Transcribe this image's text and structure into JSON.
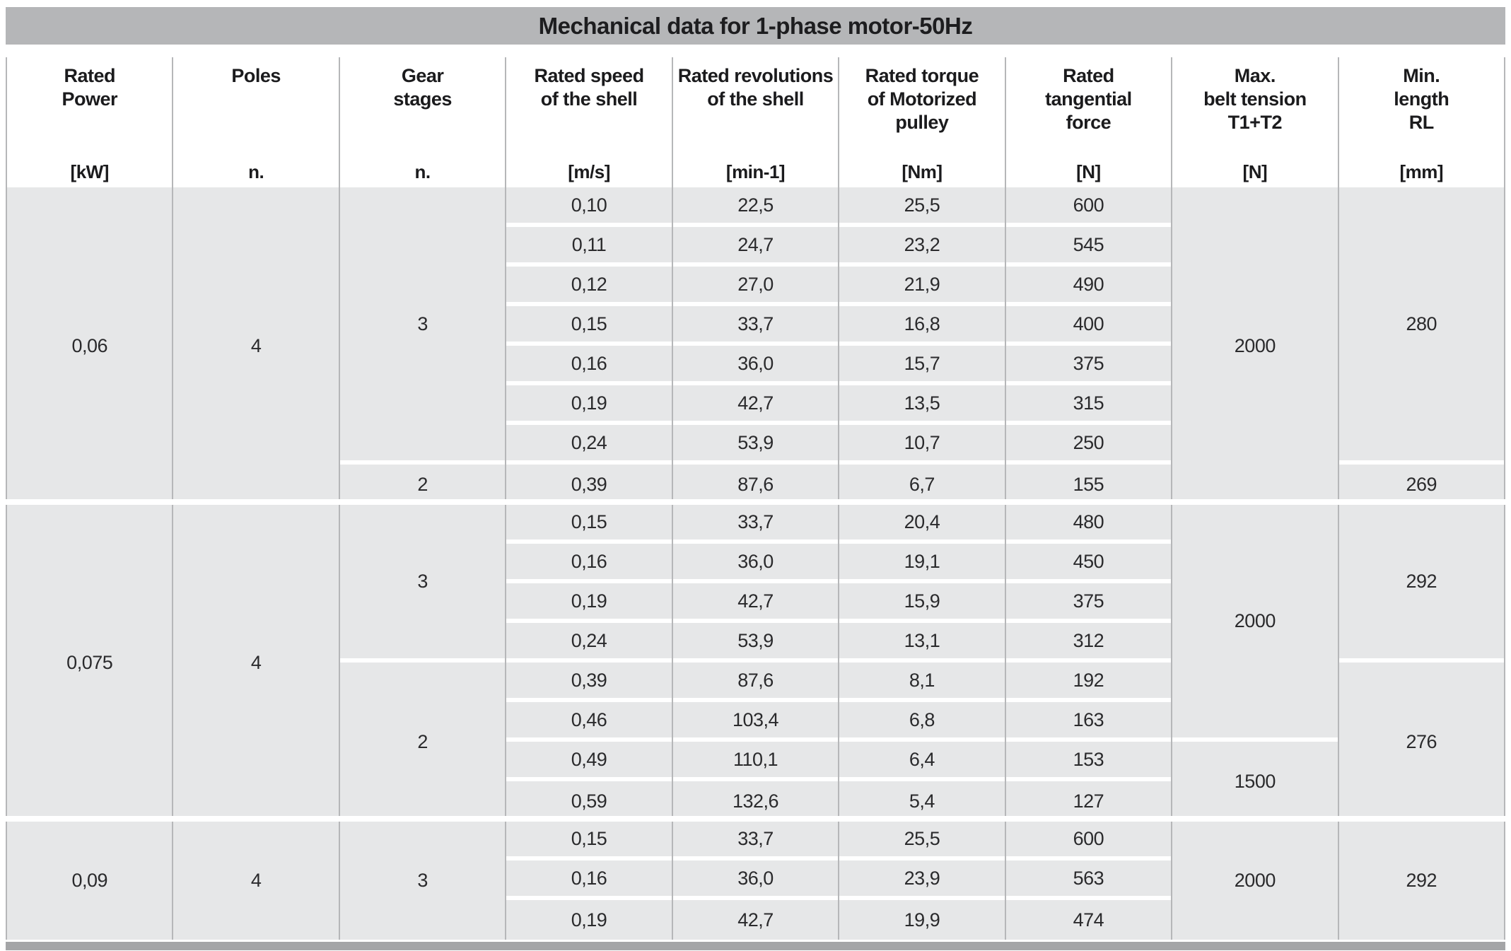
{
  "title": "Mechanical data for 1-phase motor-50Hz",
  "colors": {
    "title_bar": "#b5b6b8",
    "cell_background": "#e6e7e8",
    "column_divider": "#b6b7b9",
    "row_separator": "#ffffff",
    "bottom_bar": "#a4a5a7",
    "text": "#1d1d1f"
  },
  "columns": [
    {
      "label": "Rated\nPower",
      "unit": "[kW]"
    },
    {
      "label": "Poles",
      "unit": "n."
    },
    {
      "label": "Gear\nstages",
      "unit": "n."
    },
    {
      "label": "Rated speed\nof the shell",
      "unit": "[m/s]"
    },
    {
      "label": "Rated revolutions\nof the shell",
      "unit": "[min-1]"
    },
    {
      "label": "Rated torque\nof Motorized\npulley",
      "unit": "[Nm]"
    },
    {
      "label": "Rated\ntangential\nforce",
      "unit": "[N]"
    },
    {
      "label": "Max.\nbelt tension\nT1+T2",
      "unit": "[N]"
    },
    {
      "label": "Min.\nlength\nRL",
      "unit": "[mm]"
    }
  ],
  "table": {
    "value_column_keys": [
      "rated_speed_ms",
      "rated_revolutions_min",
      "rated_torque_Nm",
      "tangential_force_N"
    ],
    "blocks": [
      {
        "rated_power": "0,06",
        "poles": "4",
        "gear_groups": [
          {
            "stages": "3",
            "rows": [
              [
                "0,10",
                "22,5",
                "25,5",
                "600"
              ],
              [
                "0,11",
                "24,7",
                "23,2",
                "545"
              ],
              [
                "0,12",
                "27,0",
                "21,9",
                "490"
              ],
              [
                "0,15",
                "33,7",
                "16,8",
                "400"
              ],
              [
                "0,16",
                "36,0",
                "15,7",
                "375"
              ],
              [
                "0,19",
                "42,7",
                "13,5",
                "315"
              ],
              [
                "0,24",
                "53,9",
                "10,7",
                "250"
              ]
            ]
          },
          {
            "stages": "2",
            "rows": [
              [
                "0,39",
                "87,6",
                "6,7",
                "155"
              ]
            ]
          }
        ],
        "belt_tension_groups": [
          {
            "value": "2000",
            "span": 8
          }
        ],
        "min_length_groups": [
          {
            "value": "280",
            "span": 7
          },
          {
            "value": "269",
            "span": 1
          }
        ]
      },
      {
        "rated_power": "0,075",
        "poles": "4",
        "gear_groups": [
          {
            "stages": "3",
            "rows": [
              [
                "0,15",
                "33,7",
                "20,4",
                "480"
              ],
              [
                "0,16",
                "36,0",
                "19,1",
                "450"
              ],
              [
                "0,19",
                "42,7",
                "15,9",
                "375"
              ],
              [
                "0,24",
                "53,9",
                "13,1",
                "312"
              ]
            ]
          },
          {
            "stages": "2",
            "rows": [
              [
                "0,39",
                "87,6",
                "8,1",
                "192"
              ],
              [
                "0,46",
                "103,4",
                "6,8",
                "163"
              ],
              [
                "0,49",
                "110,1",
                "6,4",
                "153"
              ],
              [
                "0,59",
                "132,6",
                "5,4",
                "127"
              ]
            ]
          }
        ],
        "belt_tension_groups": [
          {
            "value": "2000",
            "span": 6
          },
          {
            "value": "1500",
            "span": 2
          }
        ],
        "min_length_groups": [
          {
            "value": "292",
            "span": 4
          },
          {
            "value": "276",
            "span": 4
          }
        ]
      },
      {
        "rated_power": "0,09",
        "poles": "4",
        "gear_groups": [
          {
            "stages": "3",
            "rows": [
              [
                "0,15",
                "33,7",
                "25,5",
                "600"
              ],
              [
                "0,16",
                "36,0",
                "23,9",
                "563"
              ],
              [
                "0,19",
                "42,7",
                "19,9",
                "474"
              ]
            ]
          }
        ],
        "belt_tension_groups": [
          {
            "value": "2000",
            "span": 3
          }
        ],
        "min_length_groups": [
          {
            "value": "292",
            "span": 3
          }
        ]
      }
    ]
  }
}
